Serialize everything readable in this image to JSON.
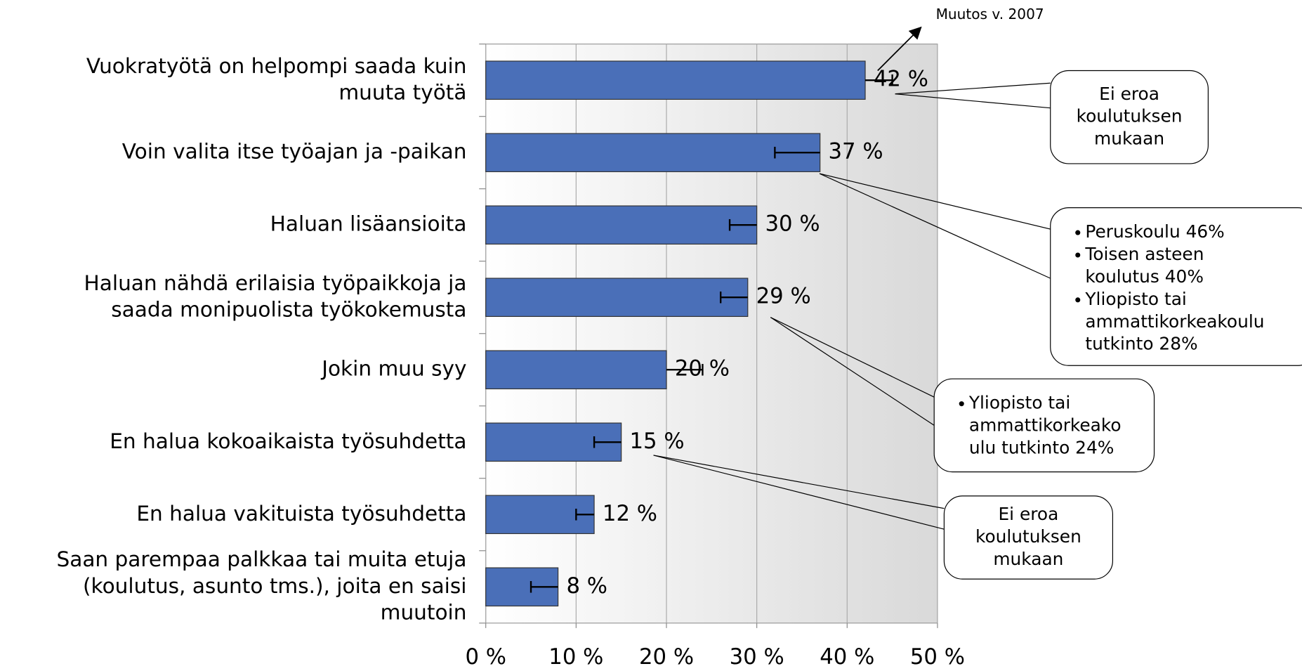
{
  "chart_data": {
    "type": "bar",
    "orientation": "horizontal",
    "categories": [
      [
        "Vuokratyötä on helpompi saada kuin",
        "muuta työtä"
      ],
      [
        "Voin valita itse työajan ja -paikan"
      ],
      [
        "Haluan lisäansioita"
      ],
      [
        "Haluan nähdä erilaisia työpaikkoja ja",
        "saada monipuolista työkokemusta"
      ],
      [
        "Jokin muu syy"
      ],
      [
        "En halua kokoaikaista työsuhdetta"
      ],
      [
        "En halua vakituista työsuhdetta"
      ],
      [
        "Saan parempaa palkkaa tai muita etuja",
        "(koulutus, asunto tms.), joita en saisi",
        "muutoin"
      ]
    ],
    "values": [
      42,
      37,
      30,
      29,
      20,
      15,
      12,
      8
    ],
    "value_labels": [
      "42 %",
      "37 %",
      "30 %",
      "29 %",
      "20 %",
      "15 %",
      "12 %",
      "8 %"
    ],
    "changes": [
      3,
      -5,
      -3,
      -3,
      4,
      -3,
      -2,
      -3
    ],
    "color": "#4a6fb8",
    "xlim": [
      0,
      50
    ],
    "xticks": [
      {
        "value": 0,
        "label": "0 %"
      },
      {
        "value": 10,
        "label": "10 %"
      },
      {
        "value": 20,
        "label": "20 %"
      },
      {
        "value": 30,
        "label": "30 %"
      },
      {
        "value": 40,
        "label": "40 %"
      },
      {
        "value": 50,
        "label": "50 %"
      }
    ],
    "grid": true,
    "annotations": [
      {
        "text": "Muutos v. 2007"
      },
      {
        "lines": [
          "Ei eroa",
          "koulutuksen",
          "mukaan"
        ]
      },
      {
        "bullets": [
          [
            "Peruskoulu 46%"
          ],
          [
            "Toisen asteen",
            "koulutus 40%"
          ],
          [
            "Yliopisto tai",
            "ammattikorkeakoulu",
            "tutkinto 28%"
          ]
        ]
      },
      {
        "bullets": [
          [
            "Yliopisto tai",
            "ammattikorkeako",
            "ulu tutkinto 24%"
          ]
        ]
      },
      {
        "lines": [
          "Ei eroa",
          "koulutuksen",
          "mukaan"
        ]
      }
    ]
  }
}
